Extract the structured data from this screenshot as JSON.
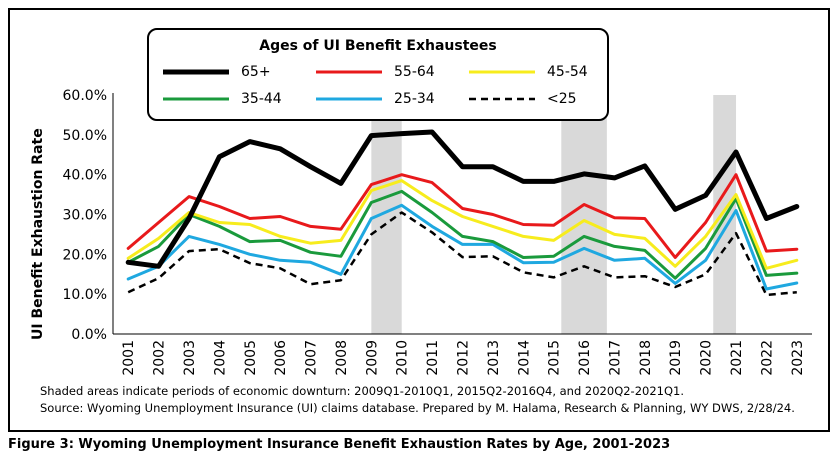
{
  "figure": {
    "caption": "Figure 3: Wyoming Unemployment Insurance Benefit Exhaustion Rates by Age, 2001-2023",
    "notes": [
      "Shaded areas indicate periods of economic downturn: 2009Q1-2010Q1, 2015Q2-2016Q4, and 2020Q2-2021Q1.",
      "Source: Wyoming Unemployment Insurance (UI) claims database. Prepared by M. Halama, Research & Planning, WY DWS, 2/28/24."
    ]
  },
  "chart_data": {
    "type": "line",
    "title": "",
    "xlabel": "",
    "ylabel": "UI Benefit Exhaustion Rate",
    "ylim": [
      0,
      60
    ],
    "yticks": [
      "0.0%",
      "10.0%",
      "20.0%",
      "30.0%",
      "40.0%",
      "50.0%",
      "60.0%"
    ],
    "grid": false,
    "legend": {
      "title": "Ages of UI Benefit Exhaustees",
      "placement": "top-left"
    },
    "categories": [
      "2001",
      "2002",
      "2003",
      "2004",
      "2005",
      "2006",
      "2007",
      "2008",
      "2009",
      "2010",
      "2011",
      "2012",
      "2013",
      "2014",
      "2015",
      "2016",
      "2017",
      "2018",
      "2019",
      "2020",
      "2021",
      "2022",
      "2023"
    ],
    "shaded_periods": [
      {
        "start": 2009.0,
        "end": 2010.0
      },
      {
        "start": 2015.25,
        "end": 2016.75
      },
      {
        "start": 2020.25,
        "end": 2021.0
      }
    ],
    "series": [
      {
        "name": "65+",
        "color": "#000000",
        "style": "solid-thick",
        "values": [
          18.0,
          17.0,
          29.0,
          44.5,
          48.3,
          46.5,
          42.0,
          37.8,
          49.8,
          50.3,
          50.7,
          42.0,
          42.0,
          38.3,
          38.3,
          40.2,
          39.2,
          42.2,
          31.3,
          34.8,
          45.7,
          29.0,
          32.0
        ]
      },
      {
        "name": "55-64",
        "color": "#e8191b",
        "style": "solid",
        "values": [
          21.5,
          28.0,
          34.5,
          32.0,
          29.0,
          29.5,
          27.0,
          26.3,
          37.5,
          40.0,
          38.0,
          31.5,
          30.0,
          27.5,
          27.3,
          32.5,
          29.2,
          29.0,
          19.2,
          28.0,
          40.0,
          20.8,
          21.3
        ]
      },
      {
        "name": "45-54",
        "color": "#f7ec1d",
        "style": "solid",
        "values": [
          19.0,
          24.0,
          30.5,
          28.0,
          27.5,
          24.5,
          22.8,
          23.5,
          36.0,
          38.5,
          33.5,
          29.5,
          27.0,
          24.5,
          23.5,
          28.5,
          25.0,
          24.0,
          17.0,
          24.5,
          35.0,
          16.5,
          18.5
        ]
      },
      {
        "name": "35-44",
        "color": "#1a9a3c",
        "style": "solid",
        "values": [
          18.0,
          22.0,
          30.0,
          27.0,
          23.2,
          23.5,
          20.5,
          19.5,
          33.0,
          35.8,
          30.5,
          24.5,
          23.2,
          19.2,
          19.5,
          24.5,
          22.0,
          21.0,
          14.0,
          21.5,
          34.0,
          14.7,
          15.3
        ]
      },
      {
        "name": "25-34",
        "color": "#1fa8e0",
        "style": "solid",
        "values": [
          13.8,
          17.0,
          24.5,
          22.5,
          20.0,
          18.5,
          18.0,
          15.0,
          29.0,
          32.3,
          27.0,
          22.5,
          22.5,
          17.9,
          18.0,
          21.5,
          18.5,
          19.0,
          12.7,
          18.5,
          31.0,
          11.3,
          12.8
        ]
      },
      {
        "name": "<25",
        "color": "#000000",
        "style": "dashed",
        "values": [
          10.5,
          14.0,
          20.8,
          21.3,
          17.8,
          16.5,
          12.5,
          13.5,
          25.0,
          30.5,
          25.5,
          19.3,
          19.5,
          15.5,
          14.2,
          17.0,
          14.2,
          14.5,
          11.8,
          15.0,
          25.3,
          9.8,
          10.5
        ]
      }
    ]
  }
}
